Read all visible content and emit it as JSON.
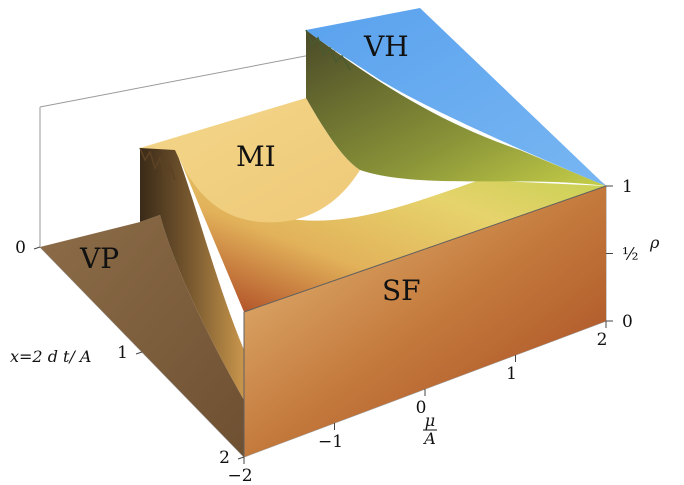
{
  "chart_data": {
    "type": "surface3d",
    "title": "",
    "axes": {
      "x": {
        "label": "x=2 d t/ A",
        "ticks": [
          "0",
          "1",
          "2"
        ],
        "range": [
          0,
          2
        ]
      },
      "mu": {
        "label_num": "μ",
        "label_den": "A",
        "ticks": [
          "-2",
          "-1",
          "0",
          "1",
          "2"
        ],
        "range": [
          -2,
          2
        ]
      },
      "rho": {
        "label": "ρ",
        "ticks": [
          "0",
          "½",
          "1"
        ],
        "range": [
          0,
          1
        ]
      }
    },
    "regions": [
      {
        "name": "VP",
        "rho": 0
      },
      {
        "name": "MI",
        "rho": 0.5
      },
      {
        "name": "SF",
        "rho": "0–1"
      },
      {
        "name": "VH",
        "rho": 1
      }
    ],
    "colors": {
      "VP": "#8a6a45",
      "MI": "#f2d284",
      "SF_low": "#b84a22",
      "SF_mid": "#e2c468",
      "SF_high": "#c2cf45",
      "VH": "#5ea6ee"
    }
  }
}
